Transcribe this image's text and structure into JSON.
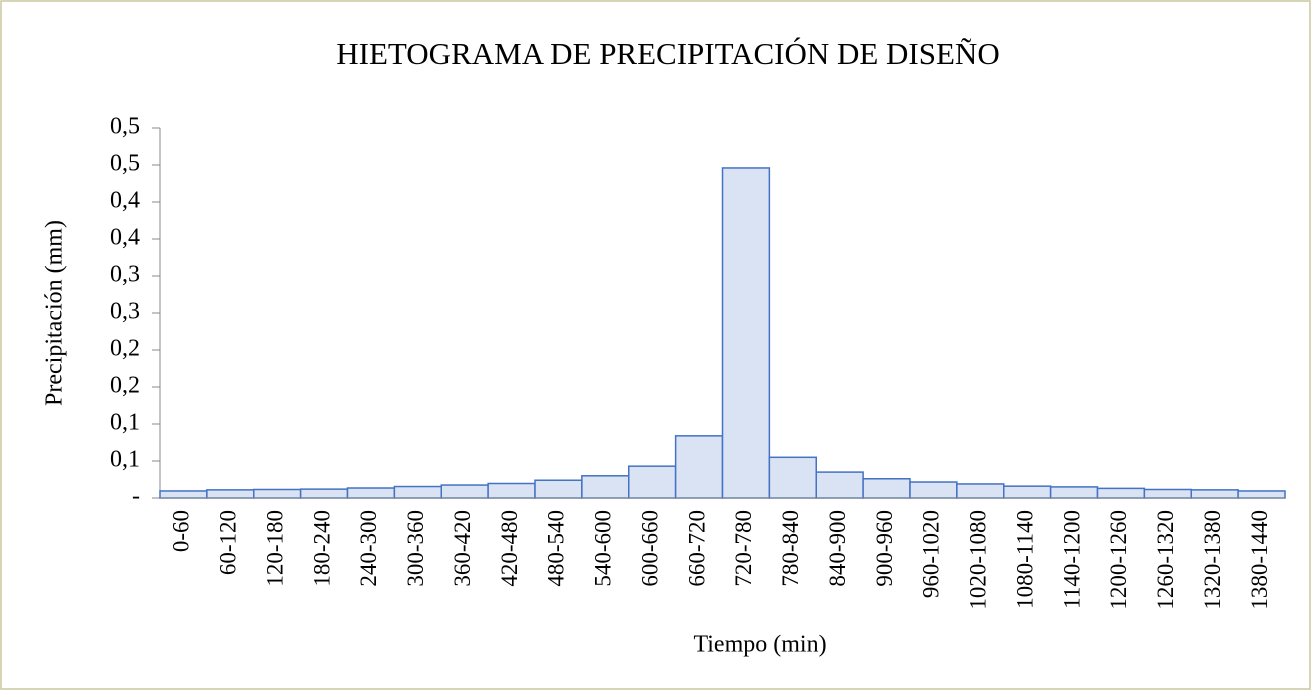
{
  "chart_data": {
    "type": "bar",
    "title": "HIETOGRAMA DE PRECIPITACIÓN DE DISEÑO",
    "x_label": "Tiempo (min)",
    "y_label": "Precipitación (mm)",
    "categories": [
      "0-60",
      "60-120",
      "120-180",
      "180-240",
      "240-300",
      "300-360",
      "360-420",
      "420-480",
      "480-540",
      "540-600",
      "600-660",
      "660-720",
      "720-780",
      "780-840",
      "840-900",
      "900-960",
      "960-1020",
      "1020-1080",
      "1080-1140",
      "1140-1200",
      "1200-1260",
      "1260-1320",
      "1320-1380",
      "1380-1440"
    ],
    "values": [
      0.0095,
      0.011,
      0.0115,
      0.012,
      0.0135,
      0.0155,
      0.0175,
      0.0196,
      0.024,
      0.03,
      0.043,
      0.084,
      0.446,
      0.055,
      0.035,
      0.026,
      0.0216,
      0.019,
      0.016,
      0.015,
      0.013,
      0.0115,
      0.011,
      0.0095
    ],
    "color": "#dae3f3",
    "edge_color": "#4472c4",
    "ylim": [
      0,
      0.5
    ],
    "yticks": [
      {
        "value": 0,
        "label": "-"
      },
      {
        "value": 0.05,
        "label": "0,1"
      },
      {
        "value": 0.1,
        "label": "0,1"
      },
      {
        "value": 0.15,
        "label": "0,2"
      },
      {
        "value": 0.2,
        "label": "0,2"
      },
      {
        "value": 0.25,
        "label": "0,3"
      },
      {
        "value": 0.3,
        "label": "0,3"
      },
      {
        "value": 0.35,
        "label": "0,4"
      },
      {
        "value": 0.4,
        "label": "0,4"
      },
      {
        "value": 0.45,
        "label": "0,5"
      },
      {
        "value": 0.5,
        "label": "0,5"
      }
    ],
    "grid": false
  }
}
